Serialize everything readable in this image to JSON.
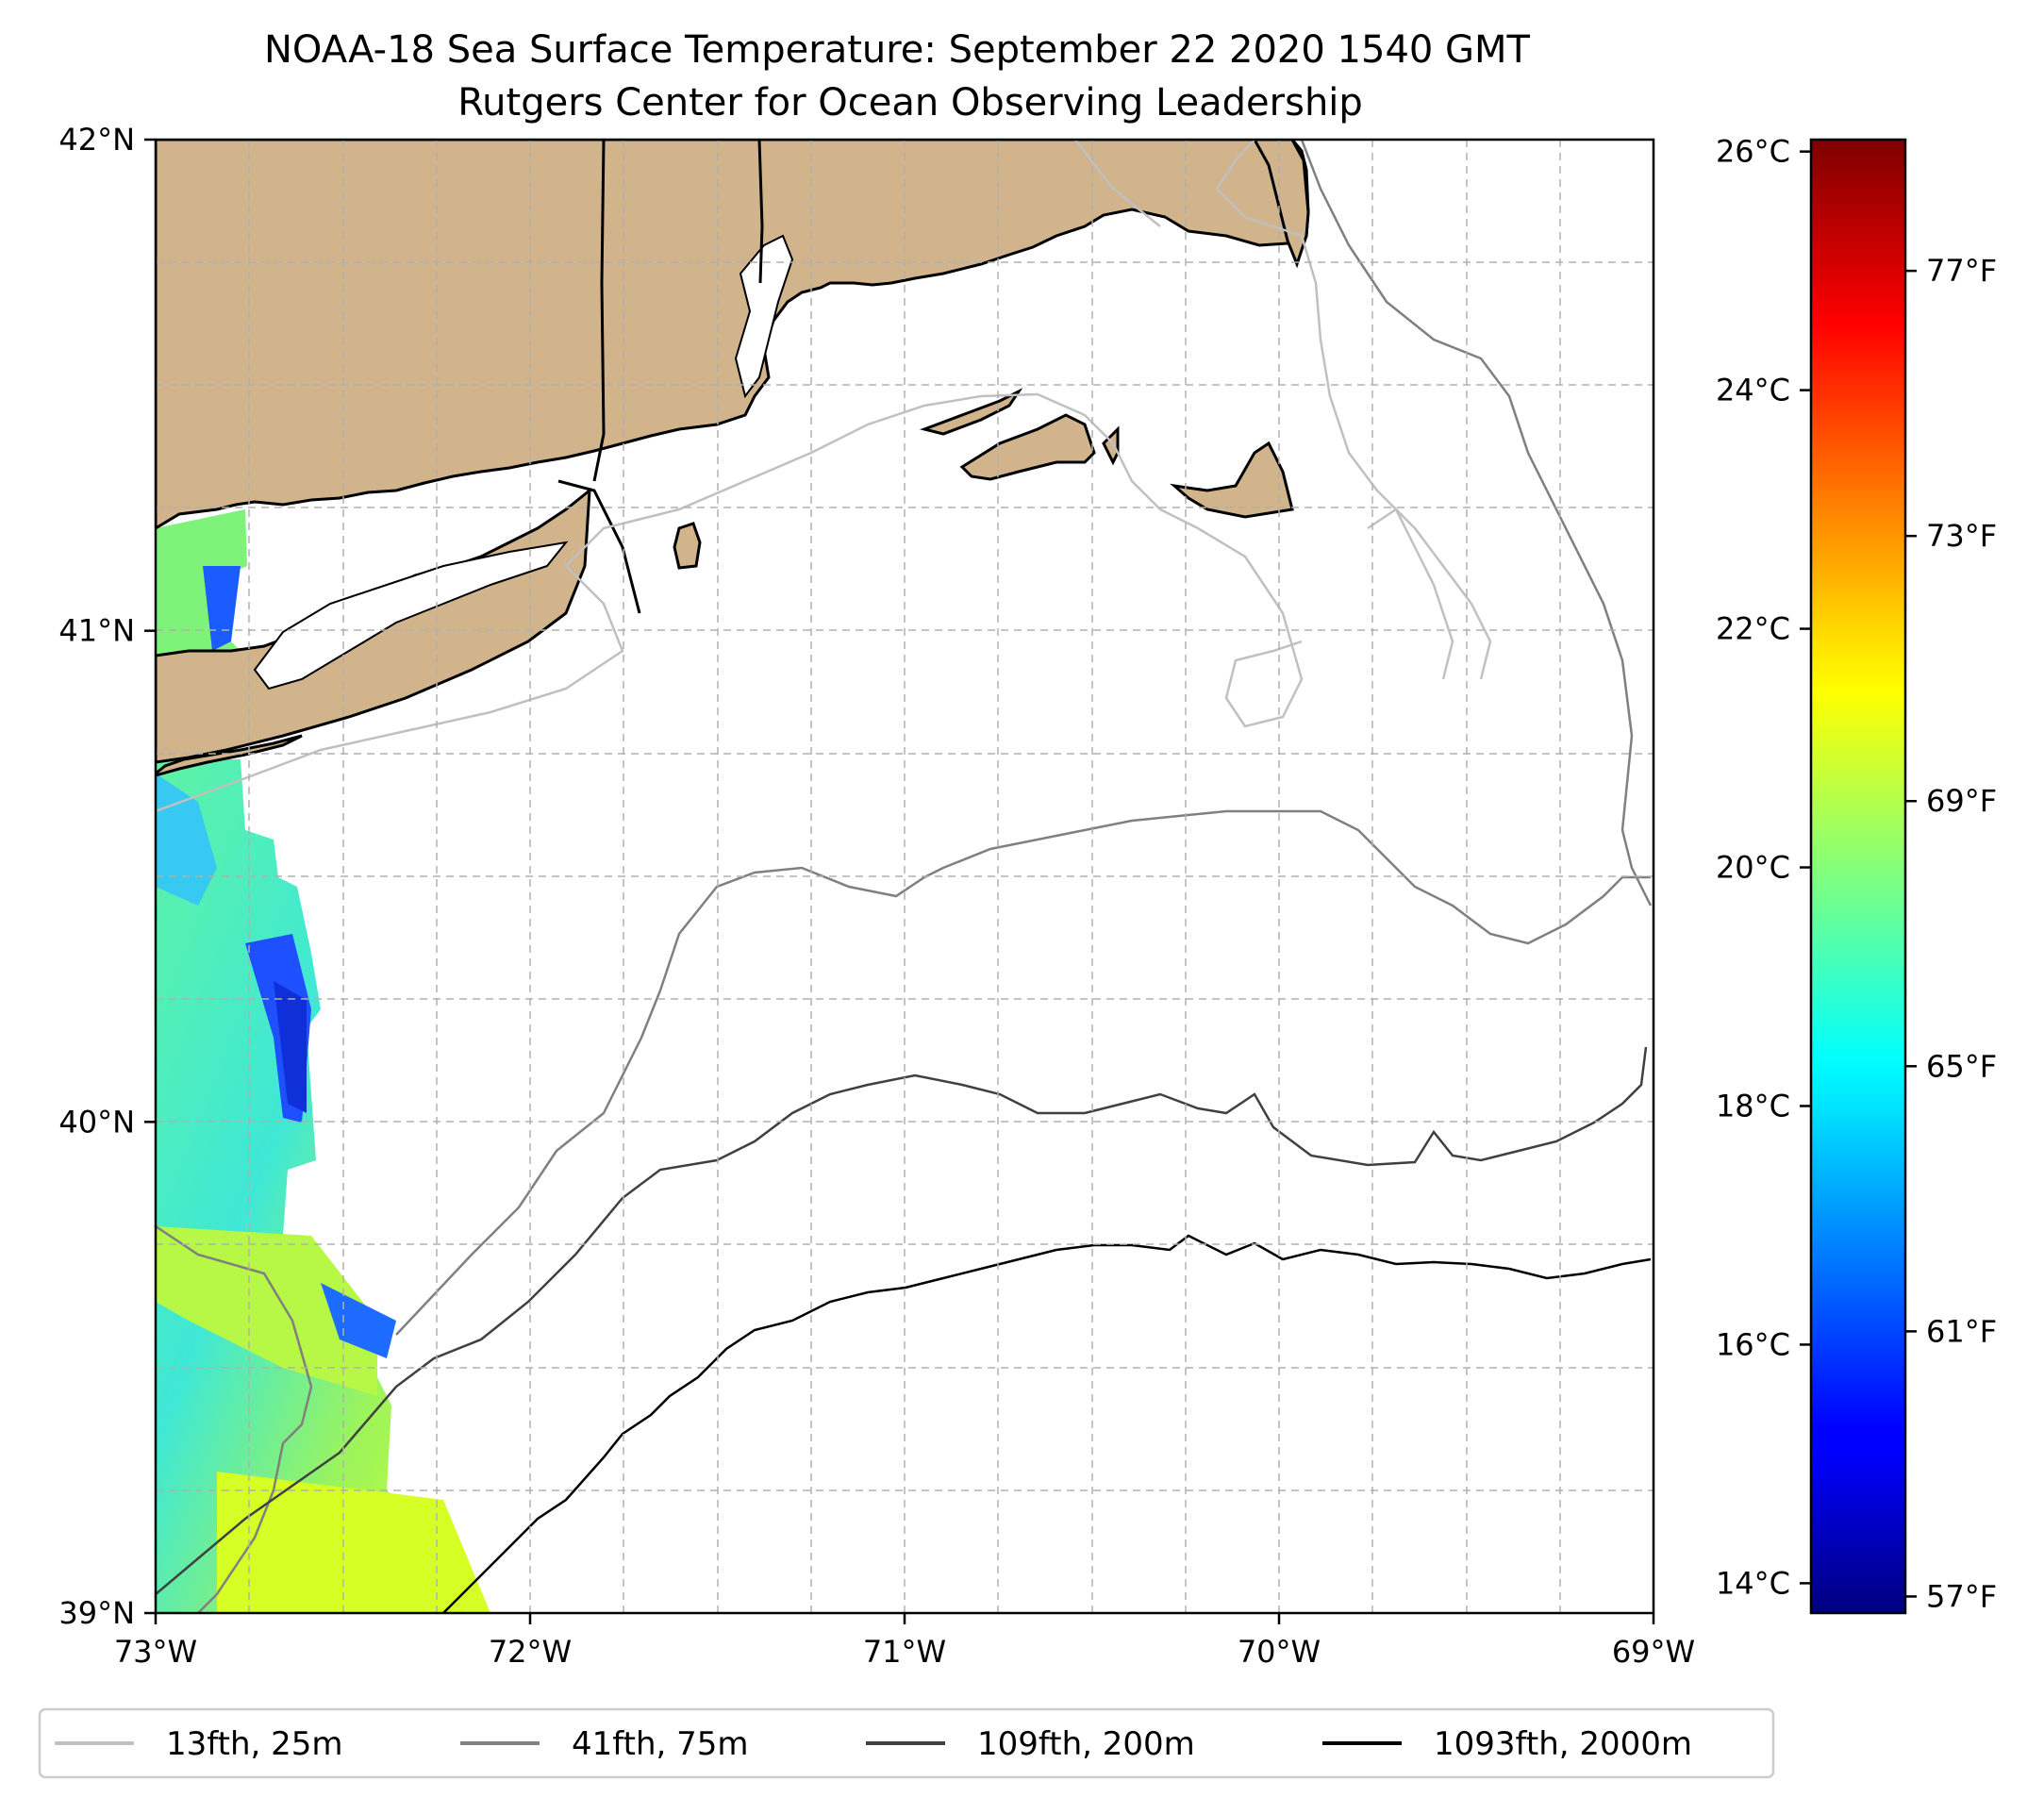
{
  "title": {
    "line1": "NOAA-18 Sea Surface Temperature: September 22 2020 1540 GMT",
    "line2": "Rutgers Center for Ocean Observing Leadership"
  },
  "map": {
    "lon_range": [
      -73,
      -69
    ],
    "lat_range": [
      39,
      42
    ],
    "land_color": "#d2b48c",
    "grid": "dashed",
    "x_ticks": [
      {
        "lon": -73,
        "label": "73°W"
      },
      {
        "lon": -72,
        "label": "72°W"
      },
      {
        "lon": -71,
        "label": "71°W"
      },
      {
        "lon": -70,
        "label": "70°W"
      },
      {
        "lon": -69,
        "label": "69°W"
      }
    ],
    "y_ticks": [
      {
        "lat": 42,
        "label": "42°N"
      },
      {
        "lat": 41,
        "label": "41°N"
      },
      {
        "lat": 40,
        "label": "40°N"
      },
      {
        "lat": 39,
        "label": "39°N"
      }
    ]
  },
  "colorbar": {
    "colormap": "jet",
    "min_c": 13.75,
    "max_c": 26.1,
    "celsius_ticks": [
      {
        "value": 14,
        "label": "14°C"
      },
      {
        "value": 16,
        "label": "16°C"
      },
      {
        "value": 18,
        "label": "18°C"
      },
      {
        "value": 20,
        "label": "20°C"
      },
      {
        "value": 22,
        "label": "22°C"
      },
      {
        "value": 24,
        "label": "24°C"
      },
      {
        "value": 26,
        "label": "26°C"
      }
    ],
    "fahrenheit_ticks": [
      {
        "value": 57,
        "label": "57°F"
      },
      {
        "value": 61,
        "label": "61°F"
      },
      {
        "value": 65,
        "label": "65°F"
      },
      {
        "value": 69,
        "label": "69°F"
      },
      {
        "value": 73,
        "label": "73°F"
      },
      {
        "value": 77,
        "label": "77°F"
      }
    ]
  },
  "legend": {
    "items": [
      {
        "label": "13fth, 25m",
        "color": "#c0c0c0"
      },
      {
        "label": "41fth, 75m",
        "color": "#808080"
      },
      {
        "label": "109fth, 200m",
        "color": "#404040"
      },
      {
        "label": "1093fth, 2000m",
        "color": "#000000"
      }
    ]
  }
}
